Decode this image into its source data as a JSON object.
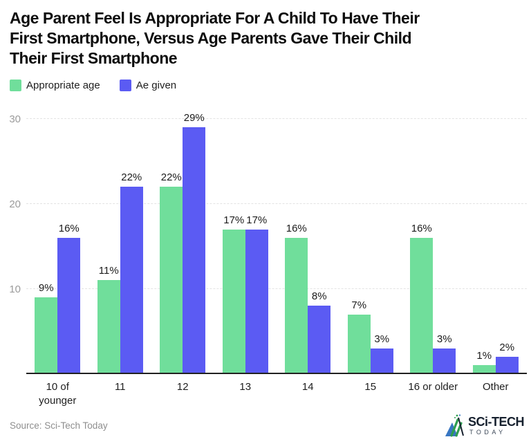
{
  "header": {
    "title": "Age Parent Feel Is Appropriate For A Child To Have Their\nFirst Smartphone, Versus Age Parents Gave Their Child\nTheir First Smartphone"
  },
  "legend": {
    "items": [
      {
        "label": "Appropriate age",
        "color": "#70DE9B"
      },
      {
        "label": "Ae given",
        "color": "#5B5BF3"
      }
    ]
  },
  "chart_data": {
    "type": "bar",
    "title": "Age Parent Feel Is Appropriate For A Child To Have Their First Smartphone, Versus Age Parents Gave Their Child Their First Smartphone",
    "categories": [
      "10 of\nyounger",
      "11",
      "12",
      "13",
      "14",
      "15",
      "16 or older",
      "Other"
    ],
    "series": [
      {
        "name": "Appropriate age",
        "color": "#70DE9B",
        "values": [
          9,
          11,
          22,
          17,
          16,
          7,
          16,
          1
        ]
      },
      {
        "name": "Ae given",
        "color": "#5B5BF3",
        "values": [
          16,
          22,
          29,
          17,
          8,
          3,
          3,
          2
        ]
      }
    ],
    "value_suffix": "%",
    "xlabel": "",
    "ylabel": "",
    "ylim": [
      0,
      30
    ],
    "yticks": [
      10,
      20,
      30
    ],
    "grid": true,
    "grid_style": "dashed",
    "legend_position": "top-left"
  },
  "footer": {
    "source": "Source: Sci-Tech Today",
    "logo_title": "SCi-TECH",
    "logo_subtitle": "TODAY"
  },
  "colors": {
    "series1": "#70DE9B",
    "series2": "#5B5BF3",
    "grid": "#e3e3e3",
    "axis": "#212121",
    "ytick_text": "#9b9b9b",
    "title_text": "#0d0d0d",
    "source_text": "#8e8e8e"
  }
}
